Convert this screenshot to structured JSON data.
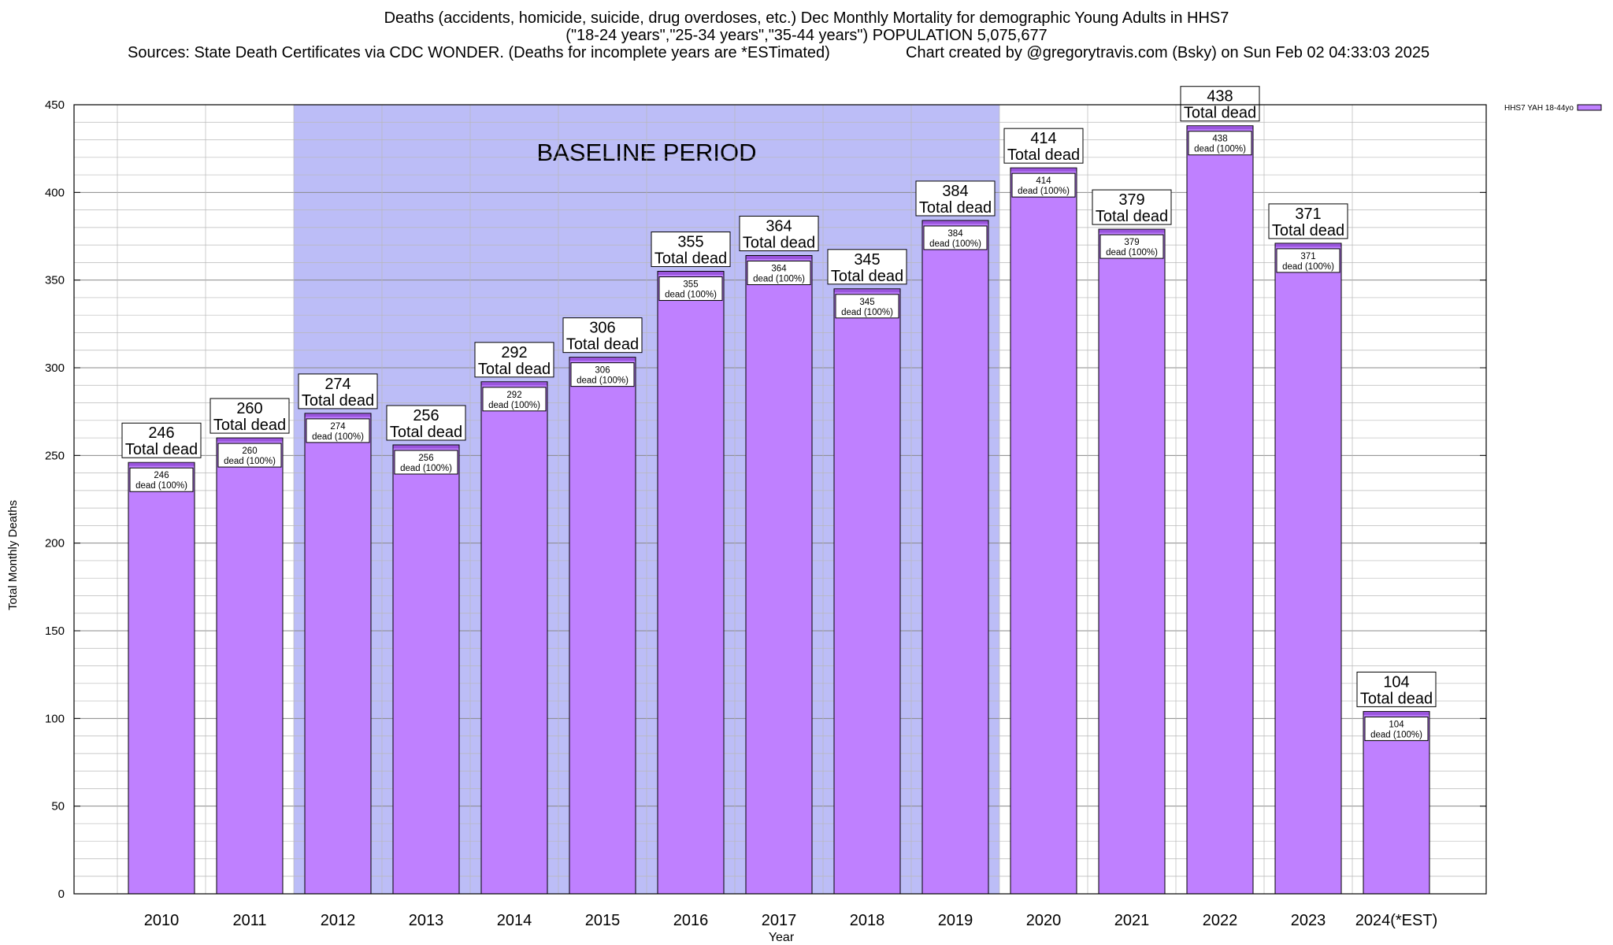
{
  "header": {
    "title_line1": "Deaths (accidents, homicide, suicide, drug overdoses, etc.) Dec Monthly Mortality for demographic Young Adults in HHS7",
    "title_line2": "(\"18-24 years\",\"25-34 years\",\"35-44 years\") POPULATION 5,075,677",
    "sources": "Sources: State Death Certificates via CDC WONDER. (Deaths for incomplete years are *ESTimated)",
    "credit": "Chart created by @gregorytravis.com (Bsky) on Sun Feb 02 04:33:03 2025"
  },
  "chart_data": {
    "type": "bar",
    "xlabel": "Year",
    "ylabel": "Total Monthly Deaths",
    "ylim": [
      0,
      450
    ],
    "yticks": [
      0,
      50,
      100,
      150,
      200,
      250,
      300,
      350,
      400,
      450
    ],
    "grid": true,
    "legend_position": "top-right",
    "baseline_label": "BASELINE PERIOD",
    "baseline_range": [
      "2012",
      "2019"
    ],
    "categories": [
      "2010",
      "2011",
      "2012",
      "2013",
      "2014",
      "2015",
      "2016",
      "2017",
      "2018",
      "2019",
      "2020",
      "2021",
      "2022",
      "2023",
      "2024(*EST)"
    ],
    "series": [
      {
        "name": "HHS7 YAH 18-44yo",
        "values": [
          246,
          260,
          274,
          256,
          292,
          306,
          355,
          364,
          345,
          384,
          414,
          379,
          438,
          371,
          104
        ]
      }
    ],
    "total_label_text": "Total dead",
    "inner_label_text": "dead (100%)",
    "colors": {
      "bar_fill": "#bf80ff",
      "bar_cap": "#9a55dd",
      "baseline_fill": "#bcbdf7",
      "grid": "#b8b8b8"
    }
  }
}
